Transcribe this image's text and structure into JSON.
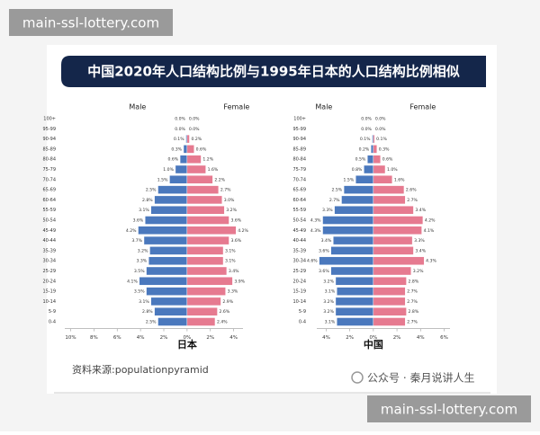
{
  "watermark_top": "main-ssl-lottery.com",
  "banner_title": "中国2020年人口结构比例与1995年日本的人口结构比例相似",
  "source": "资料来源:populationpyramid",
  "account": "公众号 · 秦月说讲人生",
  "watermark_bottom": "main-ssl-lottery.com",
  "chart_data": [
    {
      "type": "pyramid",
      "x_label": "日本",
      "categories": [
        "100+",
        "95-99",
        "90-94",
        "85-89",
        "80-84",
        "75-79",
        "70-74",
        "65-69",
        "60-64",
        "55-59",
        "50-54",
        "45-49",
        "40-44",
        "35-39",
        "30-34",
        "25-29",
        "20-24",
        "15-19",
        "10-14",
        "5-9",
        "0-4"
      ],
      "series": [
        {
          "name": "Male",
          "color": "#4a78bd",
          "values": [
            0.0,
            0.0,
            0.1,
            0.3,
            0.6,
            1.0,
            1.5,
            2.5,
            2.8,
            3.1,
            3.6,
            4.2,
            3.7,
            3.2,
            3.3,
            3.5,
            4.1,
            3.5,
            3.1,
            2.8,
            2.5
          ],
          "value_labels": [
            "0.0%",
            "0.0%",
            "0.1%",
            "0.3%",
            "0.6%",
            "1.0%",
            "1.5%",
            "2.5%",
            "2.8%",
            "3.1%",
            "3.6%",
            "4.2%",
            "3.7%",
            "3.2%",
            "3.3%",
            "3.5%",
            "4.1%",
            "3.5%",
            "3.1%",
            "2.8%",
            "2.5%"
          ]
        },
        {
          "name": "Female",
          "color": "#e67a90",
          "values": [
            0.0,
            0.0,
            0.2,
            0.6,
            1.2,
            1.6,
            2.2,
            2.7,
            3.0,
            3.2,
            3.6,
            4.2,
            3.6,
            3.1,
            3.1,
            3.4,
            3.9,
            3.3,
            2.9,
            2.6,
            2.4
          ],
          "value_labels": [
            "0.0%",
            "0.0%",
            "0.2%",
            "0.6%",
            "1.2%",
            "1.6%",
            "2.2%",
            "2.7%",
            "3.0%",
            "3.2%",
            "3.6%",
            "4.2%",
            "3.6%",
            "3.1%",
            "3.1%",
            "3.4%",
            "3.9%",
            "3.3%",
            "2.9%",
            "2.6%",
            "2.4%"
          ]
        }
      ],
      "xlim": [
        -10.5,
        4.8
      ],
      "xticks": [
        {
          "value": -10,
          "label": "10%"
        },
        {
          "value": -8,
          "label": "8%"
        },
        {
          "value": -6,
          "label": "6%"
        },
        {
          "value": -4,
          "label": "4%"
        },
        {
          "value": -2,
          "label": "2%"
        },
        {
          "value": 0,
          "label": "0%"
        },
        {
          "value": 2,
          "label": "2%"
        },
        {
          "value": 4,
          "label": "4%"
        }
      ]
    },
    {
      "type": "pyramid",
      "x_label": "中国",
      "categories": [
        "100+",
        "95-99",
        "90-94",
        "85-89",
        "80-84",
        "75-79",
        "70-74",
        "65-69",
        "60-64",
        "55-59",
        "50-54",
        "45-49",
        "40-44",
        "35-39",
        "30-34",
        "25-29",
        "20-24",
        "15-19",
        "10-14",
        "5-9",
        "0-4"
      ],
      "series": [
        {
          "name": "Male",
          "color": "#4a78bd",
          "values": [
            0.0,
            0.0,
            0.1,
            0.2,
            0.5,
            0.8,
            1.5,
            2.5,
            2.7,
            3.3,
            4.3,
            4.3,
            3.4,
            3.6,
            4.6,
            3.6,
            3.2,
            3.1,
            3.2,
            3.2,
            3.1
          ],
          "value_labels": [
            "0.0%",
            "0.0%",
            "0.1%",
            "0.2%",
            "0.5%",
            "0.8%",
            "1.5%",
            "2.5%",
            "2.7%",
            "3.3%",
            "4.3%",
            "4.3%",
            "3.4%",
            "3.6%",
            "4.6%",
            "3.6%",
            "3.2%",
            "3.1%",
            "3.2%",
            "3.2%",
            "3.1%"
          ]
        },
        {
          "name": "Female",
          "color": "#e67a90",
          "values": [
            0.0,
            0.0,
            0.1,
            0.3,
            0.6,
            1.0,
            1.6,
            2.6,
            2.7,
            3.4,
            4.2,
            4.1,
            3.3,
            3.4,
            4.3,
            3.2,
            2.8,
            2.7,
            2.7,
            2.8,
            2.7
          ],
          "value_labels": [
            "0.0%",
            "0.0%",
            "0.1%",
            "0.3%",
            "0.6%",
            "1.0%",
            "1.6%",
            "2.6%",
            "2.7%",
            "3.4%",
            "4.2%",
            "4.1%",
            "3.3%",
            "3.4%",
            "4.3%",
            "3.2%",
            "2.8%",
            "2.7%",
            "2.7%",
            "2.8%",
            "2.7%"
          ]
        }
      ],
      "xlim": [
        -4.8,
        6.5
      ],
      "xticks": [
        {
          "value": -4,
          "label": "4%"
        },
        {
          "value": -2,
          "label": "2%"
        },
        {
          "value": 0,
          "label": "0%"
        },
        {
          "value": 2,
          "label": "2%"
        },
        {
          "value": 4,
          "label": "4%"
        },
        {
          "value": 6,
          "label": "6%"
        }
      ]
    }
  ]
}
